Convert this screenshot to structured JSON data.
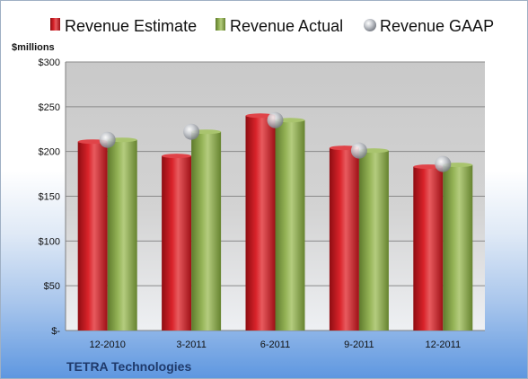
{
  "colors": {
    "estimate": "#c0151b",
    "actual": "#8dab4f",
    "gaap": "#b9bcc2",
    "plot_bg": "#c8c8c8",
    "company_text": "#1f3a6b"
  },
  "chart_data": {
    "type": "bar",
    "title": "",
    "company": "TETRA Technologies",
    "ylabel": "$millions",
    "xlabel": "",
    "ylim": [
      0,
      300
    ],
    "yticks": [
      0,
      50,
      100,
      150,
      200,
      250,
      300
    ],
    "ytick_labels": [
      "$-",
      "$50",
      "$100",
      "$150",
      "$200",
      "$250",
      "$300"
    ],
    "grid": true,
    "legend_position": "top",
    "categories": [
      "12-2010",
      "3-2011",
      "6-2011",
      "9-2011",
      "12-2011"
    ],
    "series": [
      {
        "name": "Revenue Estimate",
        "kind": "bar",
        "values": [
          211,
          195,
          240,
          204,
          183
        ]
      },
      {
        "name": "Revenue Actual",
        "kind": "bar",
        "values": [
          213,
          222,
          235,
          201,
          185
        ]
      },
      {
        "name": "Revenue GAAP",
        "kind": "marker",
        "values": [
          213,
          222,
          235,
          201,
          186
        ]
      }
    ]
  }
}
